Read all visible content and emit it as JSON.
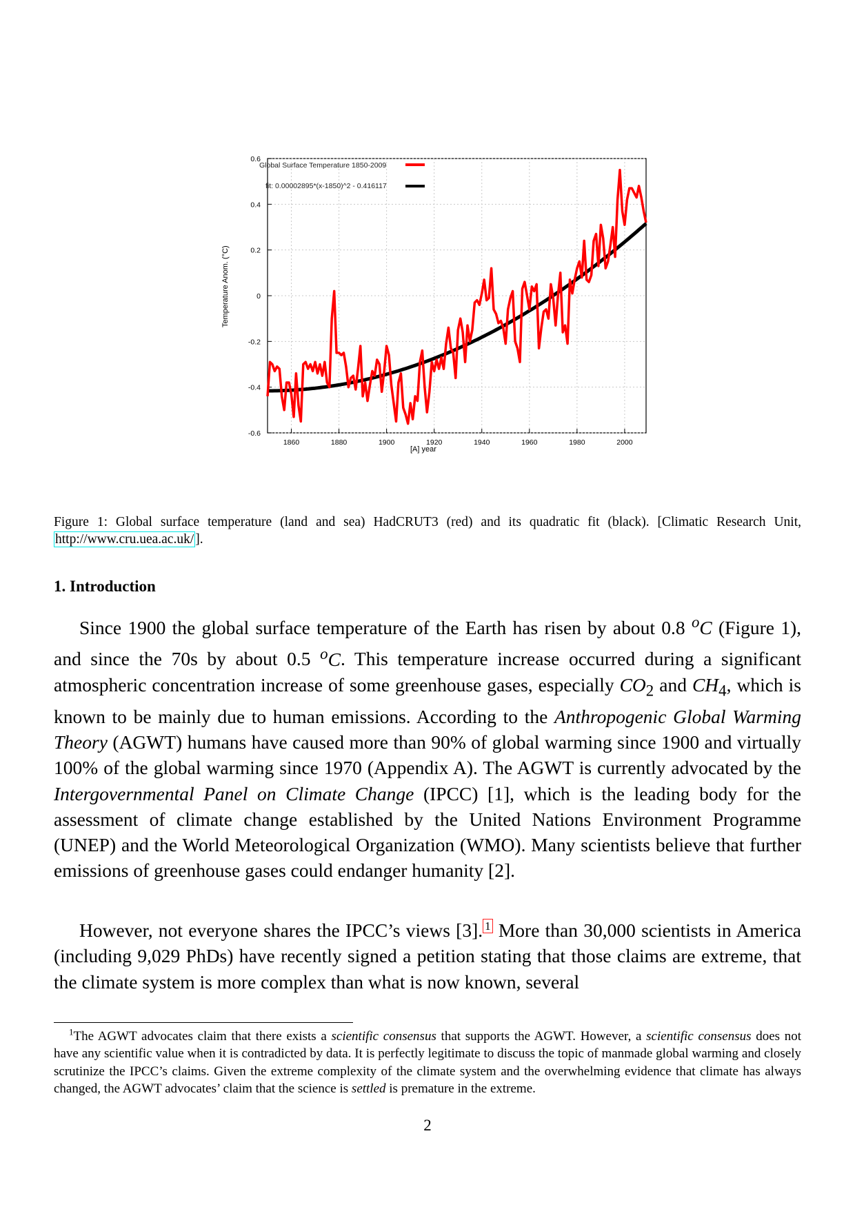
{
  "chart_data": {
    "type": "line",
    "title": "",
    "xlabel": "[A]  year",
    "ylabel": "Temperature Anom. (°C)",
    "xlim": [
      1850,
      2009
    ],
    "ylim": [
      -0.6,
      0.6
    ],
    "x_ticks": [
      1860,
      1880,
      1900,
      1920,
      1940,
      1960,
      1980,
      2000
    ],
    "y_ticks": [
      -0.6,
      -0.4,
      -0.2,
      0,
      0.2,
      0.4,
      0.6
    ],
    "y_tick_labels": [
      "-0.6",
      "-0.4",
      "-0.2",
      "0",
      "0.2",
      "0.4",
      "0.6"
    ],
    "grid": true,
    "legend_position": "top-left",
    "series": [
      {
        "name": "Global Surface Temperature 1850-2009",
        "color": "#ff0000",
        "x": [
          1850,
          1851,
          1852,
          1853,
          1854,
          1855,
          1856,
          1857,
          1858,
          1859,
          1860,
          1861,
          1862,
          1863,
          1864,
          1865,
          1866,
          1867,
          1868,
          1869,
          1870,
          1871,
          1872,
          1873,
          1874,
          1875,
          1876,
          1877,
          1878,
          1879,
          1880,
          1881,
          1882,
          1883,
          1884,
          1885,
          1886,
          1887,
          1888,
          1889,
          1890,
          1891,
          1892,
          1893,
          1894,
          1895,
          1896,
          1897,
          1898,
          1899,
          1900,
          1901,
          1902,
          1903,
          1904,
          1905,
          1906,
          1907,
          1908,
          1909,
          1910,
          1911,
          1912,
          1913,
          1914,
          1915,
          1916,
          1917,
          1918,
          1919,
          1920,
          1921,
          1922,
          1923,
          1924,
          1925,
          1926,
          1927,
          1928,
          1929,
          1930,
          1931,
          1932,
          1933,
          1934,
          1935,
          1936,
          1937,
          1938,
          1939,
          1940,
          1941,
          1942,
          1943,
          1944,
          1945,
          1946,
          1947,
          1948,
          1949,
          1950,
          1951,
          1952,
          1953,
          1954,
          1955,
          1956,
          1957,
          1958,
          1959,
          1960,
          1961,
          1962,
          1963,
          1964,
          1965,
          1966,
          1967,
          1968,
          1969,
          1970,
          1971,
          1972,
          1973,
          1974,
          1975,
          1976,
          1977,
          1978,
          1979,
          1980,
          1981,
          1982,
          1983,
          1984,
          1985,
          1986,
          1987,
          1988,
          1989,
          1990,
          1991,
          1992,
          1993,
          1994,
          1995,
          1996,
          1997,
          1998,
          1999,
          2000,
          2001,
          2002,
          2003,
          2004,
          2005,
          2006,
          2007,
          2008,
          2009
        ],
        "y": [
          -0.44,
          -0.29,
          -0.3,
          -0.33,
          -0.31,
          -0.32,
          -0.44,
          -0.5,
          -0.38,
          -0.38,
          -0.43,
          -0.53,
          -0.34,
          -0.48,
          -0.55,
          -0.3,
          -0.29,
          -0.32,
          -0.3,
          -0.33,
          -0.29,
          -0.34,
          -0.3,
          -0.35,
          -0.29,
          -0.38,
          -0.4,
          -0.1,
          0.02,
          -0.25,
          -0.25,
          -0.26,
          -0.25,
          -0.31,
          -0.4,
          -0.36,
          -0.35,
          -0.41,
          -0.32,
          -0.22,
          -0.44,
          -0.38,
          -0.46,
          -0.39,
          -0.33,
          -0.35,
          -0.28,
          -0.3,
          -0.42,
          -0.33,
          -0.22,
          -0.26,
          -0.39,
          -0.47,
          -0.55,
          -0.38,
          -0.34,
          -0.49,
          -0.52,
          -0.56,
          -0.47,
          -0.54,
          -0.44,
          -0.46,
          -0.29,
          -0.24,
          -0.4,
          -0.51,
          -0.42,
          -0.29,
          -0.33,
          -0.28,
          -0.32,
          -0.27,
          -0.32,
          -0.21,
          -0.14,
          -0.23,
          -0.25,
          -0.36,
          -0.15,
          -0.1,
          -0.16,
          -0.29,
          -0.13,
          -0.2,
          -0.15,
          -0.03,
          -0.02,
          -0.04,
          0.01,
          0.07,
          -0.02,
          -0.01,
          0.12,
          -0.06,
          -0.08,
          -0.12,
          -0.11,
          -0.14,
          -0.21,
          -0.06,
          -0.01,
          0.02,
          -0.2,
          -0.23,
          -0.29,
          0.03,
          0.06,
          0.0,
          -0.06,
          0.04,
          0.02,
          0.05,
          -0.23,
          -0.14,
          -0.07,
          -0.06,
          -0.1,
          0.05,
          -0.01,
          -0.13,
          0.0,
          0.1,
          -0.16,
          -0.13,
          -0.21,
          0.07,
          0.01,
          0.07,
          0.12,
          0.15,
          0.08,
          0.24,
          0.07,
          0.06,
          0.09,
          0.24,
          0.27,
          0.13,
          0.31,
          0.25,
          0.12,
          0.15,
          0.22,
          0.3,
          0.17,
          0.42,
          0.55,
          0.37,
          0.31,
          0.42,
          0.47,
          0.47,
          0.45,
          0.43,
          0.48,
          0.43,
          0.37,
          0.32
        ]
      },
      {
        "name": "fit: 0.00002895*(x-1850)^2 - 0.416117",
        "color": "#000000",
        "fit_a": 2.895e-05,
        "fit_x0": 1850,
        "fit_c": -0.416117
      }
    ]
  },
  "figure": {
    "legend": [
      {
        "label": "Global Surface Temperature 1850-2009",
        "color": "#ff0000"
      },
      {
        "label": "fit: 0.00002895*(x-1850)^2 - 0.416117",
        "color": "#000000"
      }
    ]
  },
  "caption": {
    "text": "Figure 1:  Global surface temperature (land and sea) HadCRUT3 (red) and its quadratic fit (black).  [Climatic Research Unit, ",
    "link": "http://www.cru.uea.ac.uk/",
    "tail": "]."
  },
  "section": {
    "heading": "1.  Introduction"
  },
  "para1": {
    "p1": "Since 1900 the global surface temperature of the Earth has risen by about 0.8 ",
    "deg1_sup": "o",
    "deg1_unit": "C",
    "p2": " (Figure 1), and since the 70s by about 0.5 ",
    "deg2_sup": "o",
    "deg2_unit": "C",
    "p3": ".  This temperature increase occurred during a significant atmospheric concentration increase of some greenhouse gases, especially ",
    "co2_base": "CO",
    "co2_sub": "2",
    "p4": " and ",
    "ch4_base": "CH",
    "ch4_sub": "4",
    "p5": ", which is known to be mainly due to human emissions. According to the ",
    "agwt_theory": "Anthropogenic Global Warming Theory",
    "p6": " (AGWT) humans have caused more than 90% of global warming since 1900 and virtually 100% of the global warming since 1970 (Appendix A). The AGWT is currently advocated by the ",
    "ipcc_name": "Intergovernmental Panel on Climate Change",
    "p7": " (IPCC) [1], which is the leading body for the assessment of climate change established by the United Nations Environment Programme (UNEP) and the World Meteorological Organization (WMO). Many scientists believe that further emissions of greenhouse gases could endanger humanity [2]."
  },
  "para2": {
    "p1": "However, not everyone shares the IPCC’s views [3].",
    "fnref": "1",
    "p2": "  More than 30,000 scientists in America (including 9,029 PhDs) have recently signed a petition stating that those claims are extreme, that the climate system is more complex than what is now known, several"
  },
  "footnote": {
    "mark": "1",
    "t1": "The AGWT advocates claim that there exists a ",
    "em1": "scientific consensus",
    "t2": " that supports the AGWT. However, a ",
    "em2": "scientific consensus",
    "t3": " does not have any scientific value when it is contradicted by data. It is perfectly legitimate to discuss the topic of manmade global warming and closely scrutinize the IPCC’s claims.  Given the extreme complexity of the climate system and the overwhelming evidence that climate has always changed, the AGWT advocates’ claim that the science is ",
    "em3": "settled",
    "t4": " is premature in the extreme."
  },
  "page": {
    "number": "2"
  }
}
